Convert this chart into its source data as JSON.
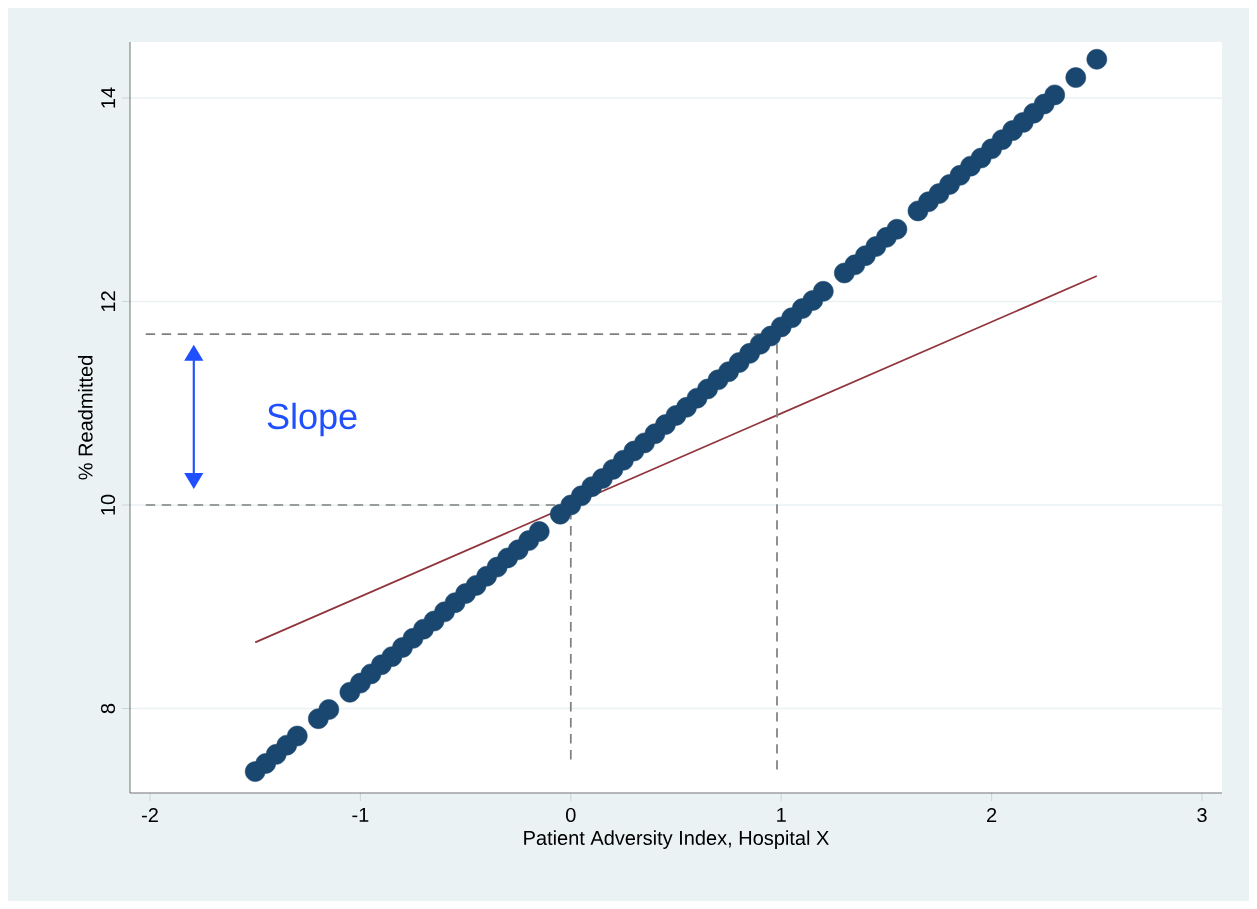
{
  "chart_data": {
    "type": "scatter",
    "xlabel": "Patient Adversity Index, Hospital X",
    "ylabel": "% Readmitted",
    "xlim": [
      -2.095,
      3.095
    ],
    "ylim": [
      7.17,
      14.55
    ],
    "xticks": [
      -2,
      -1,
      0,
      1,
      2,
      3
    ],
    "yticks": [
      8,
      10,
      12,
      14
    ],
    "grid": "y",
    "series": [
      {
        "color": "#1a476f",
        "marker": "circle",
        "x": [
          -1.5,
          -1.45,
          -1.4,
          -1.35,
          -1.3,
          -1.2,
          -1.15,
          -1.05,
          -1.0,
          -0.95,
          -0.9,
          -0.85,
          -0.8,
          -0.75,
          -0.7,
          -0.65,
          -0.6,
          -0.55,
          -0.5,
          -0.45,
          -0.4,
          -0.35,
          -0.3,
          -0.25,
          -0.2,
          -0.15,
          -0.05,
          0,
          0.05,
          0.1,
          0.15,
          0.2,
          0.25,
          0.3,
          0.35,
          0.4,
          0.45,
          0.5,
          0.55,
          0.6,
          0.65,
          0.7,
          0.75,
          0.8,
          0.85,
          0.9,
          0.95,
          1.0,
          1.05,
          1.1,
          1.15,
          1.2,
          1.3,
          1.35,
          1.4,
          1.45,
          1.5,
          1.55,
          1.65,
          1.7,
          1.75,
          1.8,
          1.85,
          1.9,
          1.95,
          2.0,
          2.05,
          2.1,
          2.15,
          2.2,
          2.25,
          2.3,
          2.4,
          2.5
        ],
        "values": [
          7.38,
          7.46,
          7.55,
          7.64,
          7.73,
          7.9,
          7.99,
          8.16,
          8.25,
          8.34,
          8.43,
          8.51,
          8.6,
          8.69,
          8.78,
          8.86,
          8.95,
          9.04,
          9.13,
          9.21,
          9.3,
          9.39,
          9.48,
          9.56,
          9.65,
          9.74,
          9.91,
          10.0,
          10.09,
          10.18,
          10.26,
          10.35,
          10.44,
          10.53,
          10.61,
          10.7,
          10.79,
          10.88,
          10.96,
          11.05,
          11.14,
          11.23,
          11.31,
          11.4,
          11.49,
          11.58,
          11.66,
          11.75,
          11.84,
          11.93,
          12.01,
          12.1,
          12.28,
          12.36,
          12.45,
          12.54,
          12.63,
          12.71,
          12.89,
          12.98,
          13.06,
          13.15,
          13.24,
          13.33,
          13.41,
          13.5,
          13.59,
          13.68,
          13.76,
          13.85,
          13.94,
          14.03,
          14.2,
          14.38
        ]
      },
      {
        "type": "line",
        "color": "#90353b",
        "line_style": "solid",
        "x": [
          -1.5,
          2.5
        ],
        "values": [
          8.65,
          12.25
        ]
      },
      {
        "type": "line",
        "color": "#808080",
        "line_style": "dashed",
        "x": [
          -2.02,
          0.98
        ],
        "values": [
          11.68,
          11.68
        ]
      },
      {
        "type": "line",
        "color": "#808080",
        "line_style": "dashed",
        "x": [
          -2.02,
          0
        ],
        "values": [
          10,
          10
        ]
      },
      {
        "type": "line",
        "color": "#808080",
        "line_style": "dashed",
        "x": [
          0,
          0
        ],
        "values": [
          7.5,
          10
        ]
      },
      {
        "type": "line",
        "color": "#808080",
        "line_style": "dashed",
        "x": [
          0.98,
          0.98
        ],
        "values": [
          7.4,
          11.65
        ]
      }
    ],
    "annotations": [
      "Slope"
    ]
  }
}
